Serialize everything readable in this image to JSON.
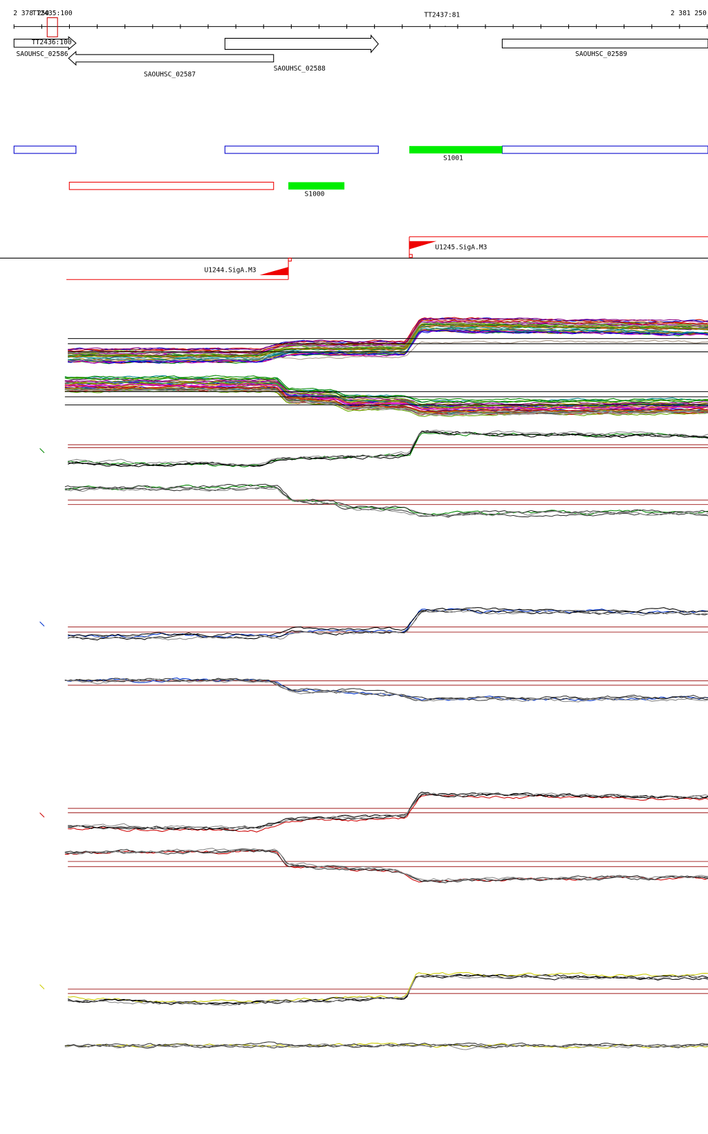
{
  "axis": {
    "start": "2 378 250",
    "end": "2 381 250"
  },
  "markers": [
    "TT2435:100",
    "TT2437:81",
    "TT2436:100"
  ],
  "genes": [
    "SAOUHSC_02586",
    "SAOUHSC_02587",
    "SAOUHSC_02588",
    "SAOUHSC_02589"
  ],
  "segments": [
    "S1001",
    "S1000"
  ],
  "promoters": [
    "U1245.SigA.M3",
    "U1244.SigA.M3"
  ]
}
